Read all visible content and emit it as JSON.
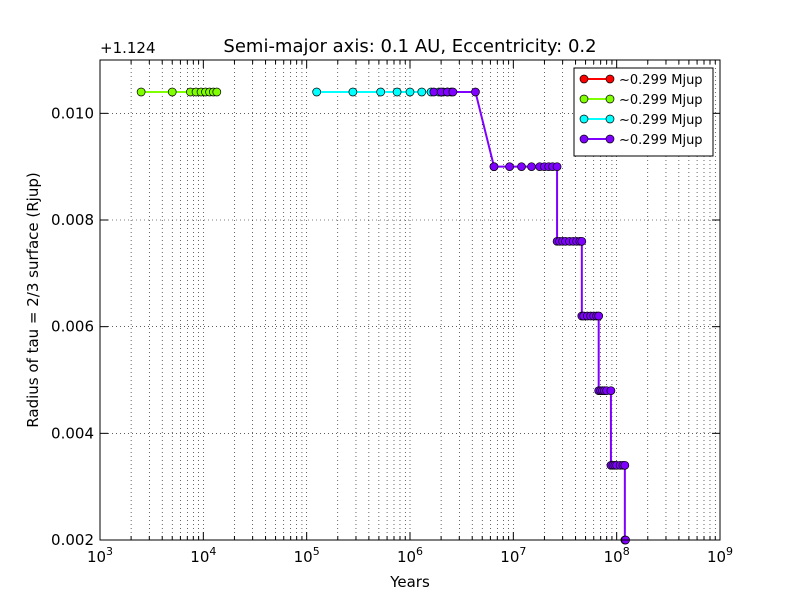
{
  "chart_data": {
    "type": "line",
    "title": "Semi-major axis: 0.1 AU, Eccentricity: 0.2",
    "xlabel": "Years",
    "ylabel": "Radius of tau = 2/3 surface (Rjup)",
    "x_scale": "log",
    "xlim": [
      1000,
      1000000000
    ],
    "ylim": [
      0.002,
      0.011
    ],
    "y_offset_label": "+1.124",
    "x_ticks": [
      1000,
      10000,
      100000,
      1000000,
      10000000,
      100000000,
      1000000000
    ],
    "x_tick_labels": [
      {
        "base": "10",
        "exp": "3"
      },
      {
        "base": "10",
        "exp": "4"
      },
      {
        "base": "10",
        "exp": "5"
      },
      {
        "base": "10",
        "exp": "6"
      },
      {
        "base": "10",
        "exp": "7"
      },
      {
        "base": "10",
        "exp": "8"
      },
      {
        "base": "10",
        "exp": "9"
      }
    ],
    "y_ticks": [
      0.002,
      0.004,
      0.006,
      0.008,
      0.01
    ],
    "y_tick_labels": [
      "0.002",
      "0.004",
      "0.006",
      "0.008",
      "0.010"
    ],
    "grid": true,
    "legend_position": "top-right",
    "series": [
      {
        "name": "~0.299 Mjup",
        "color": "#ff0000",
        "x": [],
        "y": []
      },
      {
        "name": "~0.299 Mjup",
        "color": "#80ff00",
        "x": [
          2500,
          5000,
          7500,
          8500,
          9500,
          10500,
          11500,
          12500,
          13500
        ],
        "y": [
          0.0104,
          0.0104,
          0.0104,
          0.0104,
          0.0104,
          0.0104,
          0.0104,
          0.0104,
          0.0104
        ]
      },
      {
        "name": "~0.299 Mjup",
        "color": "#00ffff",
        "x": [
          125000,
          280000,
          520000,
          750000,
          1000000,
          1300000,
          1600000,
          1900000,
          2100000,
          2300000,
          2500000
        ],
        "y": [
          0.0104,
          0.0104,
          0.0104,
          0.0104,
          0.0104,
          0.0104,
          0.0104,
          0.0104,
          0.0104,
          0.0104,
          0.0104
        ]
      },
      {
        "name": "~0.299 Mjup",
        "color": "#8000ff",
        "x": [
          1700000,
          2000000,
          2300000,
          2600000,
          4300000,
          6500000,
          6500000,
          9200000,
          12000000,
          15000000,
          18000000,
          20000000,
          22000000,
          24000000,
          26500000,
          26500000,
          28000000,
          30000000,
          32000000,
          35000000,
          38000000,
          41000000,
          44000000,
          46000000,
          46000000,
          48000000,
          52000000,
          56000000,
          60000000,
          64000000,
          67000000,
          67000000,
          70000000,
          73000000,
          76000000,
          80000000,
          88000000,
          88000000,
          92000000,
          96000000,
          100000000,
          108000000,
          115000000,
          120000000,
          120000000,
          122000000
        ],
        "y": [
          0.0104,
          0.0104,
          0.0104,
          0.0104,
          0.0104,
          0.009,
          0.009,
          0.009,
          0.009,
          0.009,
          0.009,
          0.009,
          0.009,
          0.009,
          0.009,
          0.0076,
          0.0076,
          0.0076,
          0.0076,
          0.0076,
          0.0076,
          0.0076,
          0.0076,
          0.0076,
          0.0062,
          0.0062,
          0.0062,
          0.0062,
          0.0062,
          0.0062,
          0.0062,
          0.0048,
          0.0048,
          0.0048,
          0.0048,
          0.0048,
          0.0048,
          0.0034,
          0.0034,
          0.0034,
          0.0034,
          0.0034,
          0.0034,
          0.0034,
          0.002,
          0.002
        ]
      }
    ]
  }
}
